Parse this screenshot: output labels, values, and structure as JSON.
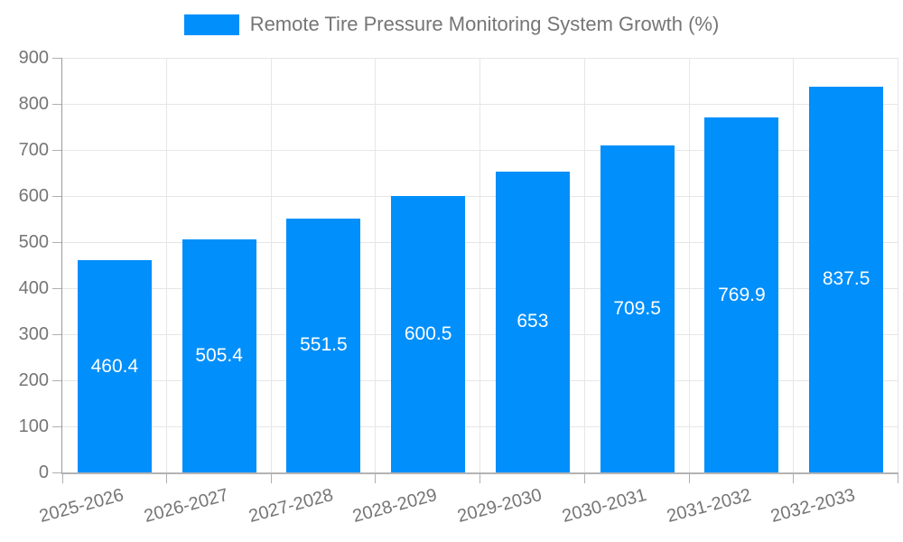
{
  "chart_data": {
    "type": "bar",
    "title": "Remote Tire Pressure Monitoring System Growth (%)",
    "categories": [
      "2025-2026",
      "2026-2027",
      "2027-2028",
      "2028-2029",
      "2029-2030",
      "2030-2031",
      "2031-2032",
      "2032-2033"
    ],
    "values": [
      460.4,
      505.4,
      551.5,
      600.5,
      653,
      709.5,
      769.9,
      837.5
    ],
    "value_labels": [
      "460.4",
      "505.4",
      "551.5",
      "600.5",
      "653",
      "709.5",
      "769.9",
      "837.5"
    ],
    "xlabel": "",
    "ylabel": "",
    "ylim": [
      0,
      900
    ],
    "yticks": [
      0,
      100,
      200,
      300,
      400,
      500,
      600,
      700,
      800,
      900
    ],
    "grid": true,
    "legend_position": "top",
    "x_label_rotation_deg": -15,
    "colors": {
      "bar": "#008FFB",
      "value_label": "#ffffff",
      "axis_text": "#757575",
      "gridline": "#e6e6e6",
      "axis_line": "#9a9a9a",
      "tick": "#b0b0b0"
    }
  },
  "legend": {
    "label": "Remote Tire Pressure Monitoring System Growth (%)"
  }
}
